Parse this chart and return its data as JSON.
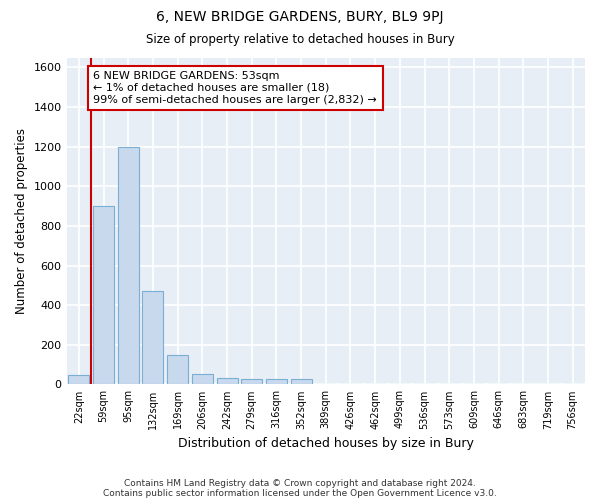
{
  "title1": "6, NEW BRIDGE GARDENS, BURY, BL9 9PJ",
  "title2": "Size of property relative to detached houses in Bury",
  "xlabel": "Distribution of detached houses by size in Bury",
  "ylabel": "Number of detached properties",
  "footnote1": "Contains HM Land Registry data © Crown copyright and database right 2024.",
  "footnote2": "Contains public sector information licensed under the Open Government Licence v3.0.",
  "annotation_line1": "6 NEW BRIDGE GARDENS: 53sqm",
  "annotation_line2": "← 1% of detached houses are smaller (18)",
  "annotation_line3": "99% of semi-detached houses are larger (2,832) →",
  "bar_color": "#c9d9ed",
  "bar_edge_color": "#7aafd4",
  "vline_color": "#cc0000",
  "background_color": "#e8eef6",
  "grid_color": "#ffffff",
  "categories": [
    "22sqm",
    "59sqm",
    "95sqm",
    "132sqm",
    "169sqm",
    "206sqm",
    "242sqm",
    "279sqm",
    "316sqm",
    "352sqm",
    "389sqm",
    "426sqm",
    "462sqm",
    "499sqm",
    "536sqm",
    "573sqm",
    "609sqm",
    "646sqm",
    "683sqm",
    "719sqm",
    "756sqm"
  ],
  "values": [
    50,
    900,
    1200,
    470,
    150,
    55,
    30,
    25,
    25,
    25,
    0,
    0,
    0,
    0,
    0,
    0,
    0,
    0,
    0,
    0,
    0
  ],
  "ylim": [
    0,
    1650
  ],
  "yticks": [
    0,
    200,
    400,
    600,
    800,
    1000,
    1200,
    1400,
    1600
  ],
  "vline_x": 0.5
}
